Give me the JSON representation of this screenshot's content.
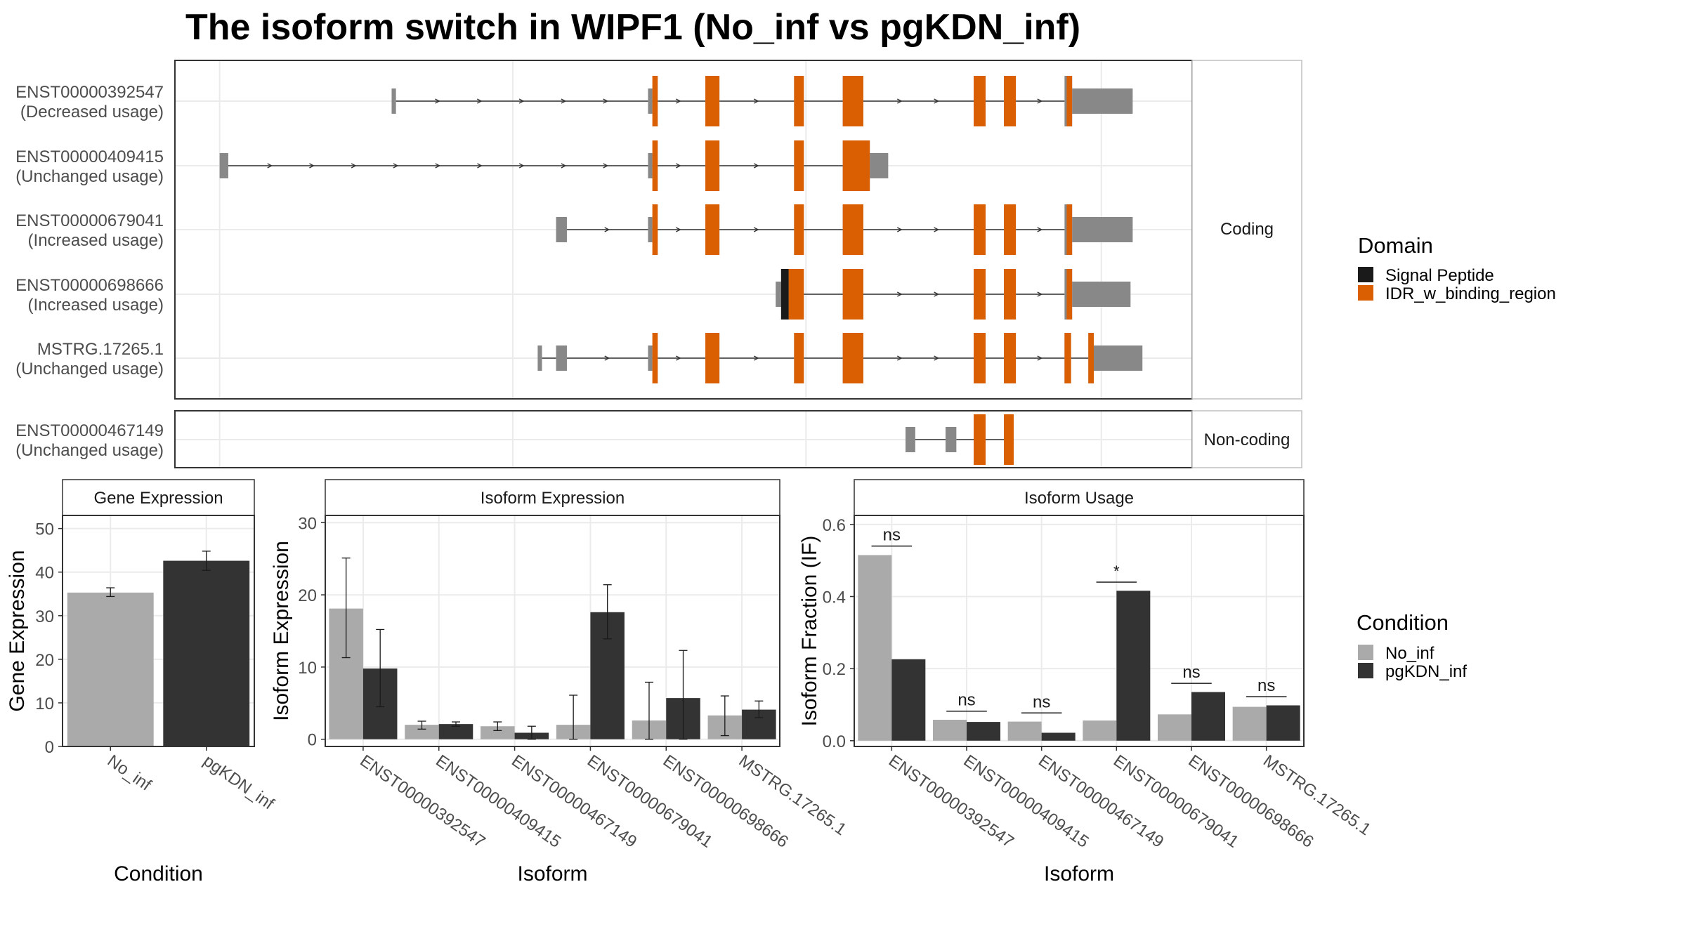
{
  "title": "The isoform switch in WIPF1 (No_inf vs pgKDN_inf)",
  "colors": {
    "exon": "#888888",
    "signal_peptide": "#1a1a1a",
    "idr": "#d95f02",
    "no_inf": "#aaaaaa",
    "pgkdn_inf": "#333333",
    "intron": "#333333",
    "grid": "#ebebeb",
    "panel_border": "#333333",
    "strip_fill": "#ffffff"
  },
  "structure": {
    "coding_label": "Coding",
    "noncoding_label": "Non-coding",
    "isoforms": [
      {
        "id": "ENST00000392547",
        "usage": "(Decreased usage)",
        "group": "coding",
        "exons": [
          [
            362,
            366
          ],
          [
            599,
            603
          ],
          [
            652,
            665
          ],
          [
            734,
            743
          ],
          [
            779,
            798
          ],
          [
            900,
            911
          ],
          [
            928,
            939
          ],
          [
            984,
            991
          ],
          [
            991,
            1047
          ]
        ],
        "domains": [
          {
            "type": "idr",
            "start": 603,
            "end": 608
          },
          {
            "type": "idr",
            "start": 652,
            "end": 665
          },
          {
            "type": "idr",
            "start": 734,
            "end": 743
          },
          {
            "type": "idr",
            "start": 779,
            "end": 798
          },
          {
            "type": "idr",
            "start": 900,
            "end": 911
          },
          {
            "type": "idr",
            "start": 928,
            "end": 939
          },
          {
            "type": "idr",
            "start": 986,
            "end": 991
          }
        ]
      },
      {
        "id": "ENST00000409415",
        "usage": "(Unchanged usage)",
        "group": "coding",
        "exons": [
          [
            203,
            211
          ],
          [
            599,
            603
          ],
          [
            652,
            665
          ],
          [
            734,
            743
          ],
          [
            779,
            804
          ],
          [
            804,
            821
          ]
        ],
        "domains": [
          {
            "type": "idr",
            "start": 603,
            "end": 608
          },
          {
            "type": "idr",
            "start": 652,
            "end": 665
          },
          {
            "type": "idr",
            "start": 734,
            "end": 743
          },
          {
            "type": "idr",
            "start": 779,
            "end": 804
          }
        ]
      },
      {
        "id": "ENST00000679041",
        "usage": "(Increased usage)",
        "group": "coding",
        "exons": [
          [
            514,
            524
          ],
          [
            599,
            603
          ],
          [
            652,
            665
          ],
          [
            734,
            743
          ],
          [
            779,
            798
          ],
          [
            900,
            911
          ],
          [
            928,
            939
          ],
          [
            984,
            991
          ],
          [
            991,
            1047
          ]
        ],
        "domains": [
          {
            "type": "idr",
            "start": 603,
            "end": 608
          },
          {
            "type": "idr",
            "start": 652,
            "end": 665
          },
          {
            "type": "idr",
            "start": 734,
            "end": 743
          },
          {
            "type": "idr",
            "start": 779,
            "end": 798
          },
          {
            "type": "idr",
            "start": 900,
            "end": 911
          },
          {
            "type": "idr",
            "start": 928,
            "end": 939
          },
          {
            "type": "idr",
            "start": 986,
            "end": 991
          }
        ]
      },
      {
        "id": "ENST00000698666",
        "usage": "(Increased usage)",
        "group": "coding",
        "exons": [
          [
            717,
            722
          ],
          [
            722,
            743
          ],
          [
            779,
            798
          ],
          [
            900,
            911
          ],
          [
            928,
            939
          ],
          [
            984,
            991
          ],
          [
            991,
            1045
          ]
        ],
        "domains": [
          {
            "type": "signal",
            "start": 722,
            "end": 729
          },
          {
            "type": "idr",
            "start": 729,
            "end": 743
          },
          {
            "type": "idr",
            "start": 779,
            "end": 798
          },
          {
            "type": "idr",
            "start": 900,
            "end": 911
          },
          {
            "type": "idr",
            "start": 928,
            "end": 939
          },
          {
            "type": "idr",
            "start": 986,
            "end": 991
          }
        ]
      },
      {
        "id": "MSTRG.17265.1",
        "usage": "(Unchanged usage)",
        "group": "coding",
        "exons": [
          [
            497,
            501
          ],
          [
            514,
            524
          ],
          [
            599,
            603
          ],
          [
            652,
            665
          ],
          [
            734,
            743
          ],
          [
            779,
            798
          ],
          [
            900,
            911
          ],
          [
            928,
            939
          ],
          [
            984,
            990
          ],
          [
            1006,
            1011
          ],
          [
            1011,
            1056
          ]
        ],
        "domains": [
          {
            "type": "idr",
            "start": 603,
            "end": 608
          },
          {
            "type": "idr",
            "start": 652,
            "end": 665
          },
          {
            "type": "idr",
            "start": 734,
            "end": 743
          },
          {
            "type": "idr",
            "start": 779,
            "end": 798
          },
          {
            "type": "idr",
            "start": 900,
            "end": 911
          },
          {
            "type": "idr",
            "start": 928,
            "end": 939
          },
          {
            "type": "idr",
            "start": 984,
            "end": 990
          },
          {
            "type": "idr",
            "start": 1006,
            "end": 1011
          }
        ]
      },
      {
        "id": "ENST00000467149",
        "usage": "(Unchanged usage)",
        "group": "noncoding",
        "exons": [
          [
            837,
            846
          ],
          [
            874,
            884
          ],
          [
            900,
            911
          ],
          [
            928,
            937
          ]
        ],
        "domains": [
          {
            "type": "idr",
            "start": 900,
            "end": 911
          },
          {
            "type": "idr",
            "start": 928,
            "end": 937
          }
        ]
      }
    ],
    "legend": {
      "title": "Domain",
      "entries": [
        {
          "label": "Signal Peptide",
          "type": "signal"
        },
        {
          "label": "IDR_w_binding_region",
          "type": "idr"
        }
      ]
    }
  },
  "chart_data": [
    {
      "type": "bar",
      "strip": "Gene Expression",
      "xlabel": "Condition",
      "ylabel": "Gene Expression",
      "ylim": [
        0,
        53
      ],
      "yticks": [
        0,
        10,
        20,
        30,
        40,
        50
      ],
      "categories": [
        "No_inf",
        "pgKDN_inf"
      ],
      "values": [
        35.3,
        42.6
      ],
      "errors": [
        [
          34.4,
          36.4
        ],
        [
          40.4,
          44.8
        ]
      ]
    },
    {
      "type": "bar",
      "strip": "Isoform Expression",
      "xlabel": "Isoform",
      "ylabel": "Isoform Expression",
      "ylim": [
        -1,
        31
      ],
      "yticks": [
        0,
        10,
        20,
        30
      ],
      "categories": [
        "ENST00000392547",
        "ENST00000409415",
        "ENST00000467149",
        "ENST00000679041",
        "ENST00000698666",
        "MSTRG.17265.1"
      ],
      "series": [
        {
          "name": "No_inf",
          "values": [
            18.1,
            2.0,
            1.8,
            2.0,
            2.6,
            3.3
          ],
          "errors": [
            [
              11.3,
              25.1
            ],
            [
              1.4,
              2.5
            ],
            [
              1.2,
              2.4
            ],
            [
              0,
              6.1
            ],
            [
              0,
              7.9
            ],
            [
              0.5,
              6.0
            ]
          ]
        },
        {
          "name": "pgKDN_inf",
          "values": [
            9.8,
            2.1,
            0.9,
            17.6,
            5.7,
            4.1
          ],
          "errors": [
            [
              4.5,
              15.2
            ],
            [
              1.8,
              2.4
            ],
            [
              0,
              1.8
            ],
            [
              13.9,
              21.4
            ],
            [
              0,
              12.3
            ],
            [
              3.0,
              5.3
            ]
          ]
        }
      ]
    },
    {
      "type": "bar",
      "strip": "Isoform Usage",
      "xlabel": "Isoform",
      "ylabel": "Isoform Fraction (IF)",
      "ylim": [
        -0.016,
        0.625
      ],
      "yticks": [
        "0.0",
        "0.2",
        "0.4",
        "0.6"
      ],
      "categories": [
        "ENST00000392547",
        "ENST00000409415",
        "ENST00000467149",
        "ENST00000679041",
        "ENST00000698666",
        "MSTRG.17265.1"
      ],
      "series": [
        {
          "name": "No_inf",
          "values": [
            0.515,
            0.058,
            0.053,
            0.056,
            0.073,
            0.094
          ]
        },
        {
          "name": "pgKDN_inf",
          "values": [
            0.226,
            0.052,
            0.022,
            0.416,
            0.135,
            0.098
          ]
        }
      ],
      "significance": [
        "ns",
        "ns",
        "ns",
        "*",
        "ns",
        "ns"
      ],
      "significance_y": [
        0.54,
        0.082,
        0.077,
        0.44,
        0.159,
        0.122
      ]
    }
  ],
  "condition_legend": {
    "title": "Condition",
    "entries": [
      {
        "label": "No_inf",
        "series": 0
      },
      {
        "label": "pgKDN_inf",
        "series": 1
      }
    ]
  }
}
